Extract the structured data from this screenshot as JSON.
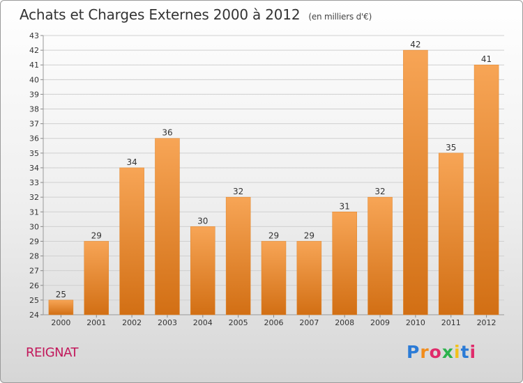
{
  "header": {
    "title": "Achats et Charges Externes 2000 à 2012",
    "unit": "(en milliers d'€)"
  },
  "footer": {
    "city": "REIGNAT",
    "logo": "Proxiti"
  },
  "colors": {
    "bar_top": "#f7a556",
    "bar_bottom": "#d26f14",
    "grid": "#cfcfcf",
    "city": "#c2185b"
  },
  "chart_data": {
    "type": "bar",
    "title": "Achats et Charges Externes 2000 à 2012",
    "subtitle": "(en milliers d'€)",
    "xlabel": "",
    "ylabel": "",
    "categories": [
      "2000",
      "2001",
      "2002",
      "2003",
      "2004",
      "2005",
      "2006",
      "2007",
      "2008",
      "2009",
      "2010",
      "2011",
      "2012"
    ],
    "values": [
      25,
      29,
      34,
      36,
      30,
      32,
      29,
      29,
      31,
      32,
      42,
      35,
      41
    ],
    "data_labels": [
      "25",
      "29",
      "34",
      "36",
      "30",
      "32",
      "29",
      "29",
      "31",
      "32",
      "42",
      "35",
      "41"
    ],
    "ylim": [
      24,
      43
    ],
    "yticks": [
      24,
      25,
      26,
      27,
      28,
      29,
      30,
      31,
      32,
      33,
      34,
      35,
      36,
      37,
      38,
      39,
      40,
      41,
      42,
      43
    ],
    "grid": true
  }
}
